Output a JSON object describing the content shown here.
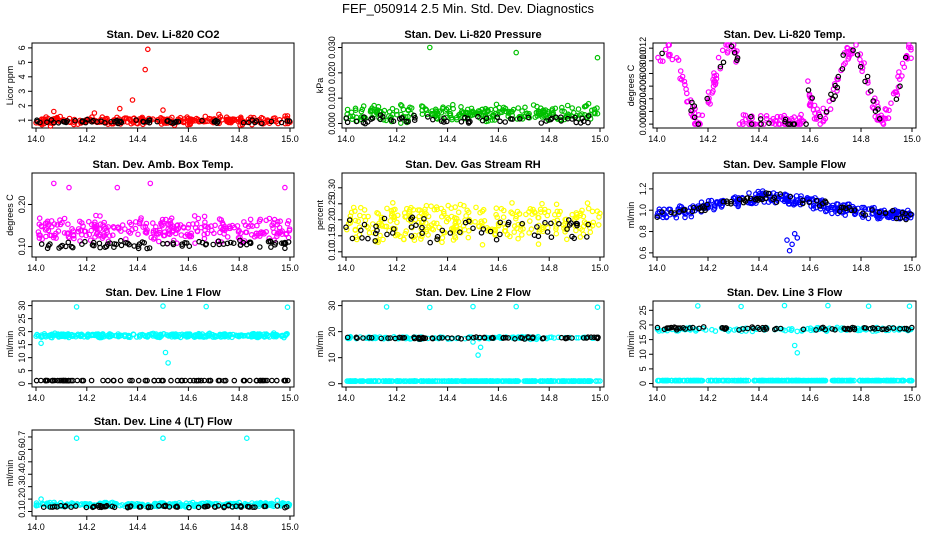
{
  "page_title": "FEF_050914  2.5 Min. Std. Dev. Diagnostics",
  "colors": {
    "red": "#ff0000",
    "green": "#00c000",
    "magenta": "#ff00ff",
    "yellow": "#ffff00",
    "blue": "#0000ff",
    "cyan": "#00ffff",
    "black": "#000000"
  },
  "chart_data": [
    {
      "type": "scatter",
      "title": "Stan. Dev. Li-820 CO2",
      "ylabel": "Licor ppm",
      "xlabel": "",
      "xlim": [
        14.0,
        15.0
      ],
      "ylim": [
        0.6,
        6.2
      ],
      "xticks": [
        "14.0",
        "14.2",
        "14.4",
        "14.6",
        "14.8",
        "15.0"
      ],
      "yticks": [
        "1",
        "2",
        "3",
        "4",
        "5",
        "6"
      ],
      "series": [
        {
          "name": "primary",
          "color": "#ff0000",
          "gen": {
            "count": 260,
            "base": 0.95,
            "spread": 0.35,
            "seed": 11
          },
          "outliers": [
            [
              14.44,
              5.9
            ],
            [
              14.43,
              4.5
            ],
            [
              14.38,
              2.4
            ],
            [
              14.07,
              1.6
            ],
            [
              14.23,
              1.5
            ],
            [
              14.5,
              1.7
            ],
            [
              14.72,
              1.4
            ],
            [
              14.99,
              1.3
            ],
            [
              14.33,
              1.8
            ]
          ]
        },
        {
          "name": "secondary",
          "color": "#000000",
          "gen": {
            "count": 60,
            "base": 0.9,
            "spread": 0.15,
            "seed": 12
          },
          "outliers": []
        }
      ]
    },
    {
      "type": "scatter",
      "title": "Stan. Dev. Li-820 Pressure",
      "ylabel": "kPa",
      "xlabel": "",
      "xlim": [
        14.0,
        15.0
      ],
      "ylim": [
        -0.001,
        0.031
      ],
      "xticks": [
        "14.0",
        "14.2",
        "14.4",
        "14.6",
        "14.8",
        "15.0"
      ],
      "yticks": [
        "0.000",
        "0.010",
        "0.020",
        "0.030"
      ],
      "series": [
        {
          "name": "primary",
          "color": "#00c000",
          "gen": {
            "count": 260,
            "base": 0.004,
            "spread": 0.004,
            "seed": 21
          },
          "outliers": [
            [
              14.33,
              0.03
            ],
            [
              14.67,
              0.028
            ],
            [
              14.99,
              0.026
            ]
          ]
        },
        {
          "name": "secondary",
          "color": "#000000",
          "gen": {
            "count": 60,
            "base": 0.0015,
            "spread": 0.002,
            "seed": 22
          },
          "outliers": []
        }
      ]
    },
    {
      "type": "scatter",
      "title": "Stan. Dev. Li-820 Temp.",
      "ylabel": "degrees C",
      "xlabel": "",
      "xlim": [
        14.0,
        15.0
      ],
      "ylim": [
        -0.0003,
        0.0125
      ],
      "xticks": [
        "14.0",
        "14.2",
        "14.4",
        "14.6",
        "14.8",
        "15.0"
      ],
      "yticks": [
        "0.000",
        "0.002",
        "0.004",
        "0.006",
        "0.008",
        "0.010",
        "0.012"
      ],
      "series": [
        {
          "name": "primary",
          "color": "#ff00ff",
          "gen": {
            "count": 240,
            "base": 0.006,
            "spread": 0.003,
            "seed": 31,
            "shape": "temp"
          },
          "outliers": []
        },
        {
          "name": "secondary",
          "color": "#000000",
          "gen": {
            "count": 50,
            "base": 0.006,
            "spread": 0.003,
            "seed": 32,
            "shape": "temp"
          },
          "outliers": []
        }
      ]
    },
    {
      "type": "scatter",
      "title": "Stan. Dev. Amb. Box Temp.",
      "ylabel": "degrees C",
      "xlabel": "",
      "xlim": [
        14.0,
        15.0
      ],
      "ylim": [
        0.08,
        0.27
      ],
      "xticks": [
        "14.0",
        "14.2",
        "14.4",
        "14.6",
        "14.8",
        "15.0"
      ],
      "yticks": [
        "0.10",
        "0.20"
      ],
      "series": [
        {
          "name": "primary",
          "color": "#ff00ff",
          "gen": {
            "count": 280,
            "base": 0.14,
            "spread": 0.035,
            "seed": 41
          },
          "outliers": [
            [
              14.07,
              0.25
            ],
            [
              14.32,
              0.24
            ],
            [
              14.45,
              0.25
            ],
            [
              14.13,
              0.24
            ],
            [
              14.98,
              0.24
            ]
          ]
        },
        {
          "name": "secondary",
          "color": "#000000",
          "gen": {
            "count": 80,
            "base": 0.105,
            "spread": 0.012,
            "seed": 42
          },
          "outliers": []
        }
      ]
    },
    {
      "type": "scatter",
      "title": "Stan. Dev. Gas Stream RH",
      "ylabel": "percent",
      "xlabel": "",
      "xlim": [
        14.0,
        15.0
      ],
      "ylim": [
        0.09,
        0.34
      ],
      "xticks": [
        "14.0",
        "14.2",
        "14.4",
        "14.6",
        "14.8",
        "15.0"
      ],
      "yticks": [
        "0.10",
        "0.15",
        "0.20",
        "0.25",
        "0.30"
      ],
      "series": [
        {
          "name": "primary",
          "color": "#ffff00",
          "gen": {
            "count": 300,
            "base": 0.19,
            "spread": 0.07,
            "seed": 51
          },
          "outliers": []
        },
        {
          "name": "secondary",
          "color": "#000000",
          "gen": {
            "count": 60,
            "base": 0.17,
            "spread": 0.05,
            "seed": 52
          },
          "outliers": []
        }
      ]
    },
    {
      "type": "scatter",
      "title": "Stan. Dev. Sample Flow",
      "ylabel": "ml/min",
      "xlabel": "",
      "xlim": [
        14.0,
        15.0
      ],
      "ylim": [
        0.58,
        1.33
      ],
      "xticks": [
        "14.0",
        "14.2",
        "14.4",
        "14.6",
        "14.8",
        "15.0"
      ],
      "yticks": [
        "0.6",
        "0.8",
        "1.0",
        "1.2"
      ],
      "series": [
        {
          "name": "primary",
          "color": "#0000ff",
          "gen": {
            "count": 300,
            "base": 0.95,
            "spread": 0.07,
            "seed": 61,
            "shape": "hump"
          },
          "outliers": [
            [
              14.52,
              0.62
            ],
            [
              14.53,
              0.68
            ],
            [
              14.51,
              0.72
            ],
            [
              14.54,
              0.78
            ],
            [
              14.55,
              0.74
            ]
          ]
        },
        {
          "name": "secondary",
          "color": "#000000",
          "gen": {
            "count": 70,
            "base": 0.95,
            "spread": 0.05,
            "seed": 62,
            "shape": "hump"
          },
          "outliers": []
        }
      ]
    },
    {
      "type": "scatter",
      "title": "Stan. Dev. Line 1 Flow",
      "ylabel": "ml/min",
      "xlabel": "",
      "xlim": [
        14.0,
        15.0
      ],
      "ylim": [
        -0.5,
        31.0
      ],
      "xticks": [
        "14.0",
        "14.2",
        "14.4",
        "14.6",
        "14.8",
        "15.0"
      ],
      "yticks": [
        "0",
        "5",
        "10",
        "15",
        "20",
        "25",
        "30"
      ],
      "series": [
        {
          "name": "primary",
          "color": "#00ffff",
          "gen": {
            "count": 300,
            "base": 18.5,
            "spread": 1.0,
            "seed": 71
          },
          "outliers": [
            [
              14.16,
              29.5
            ],
            [
              14.5,
              29.8
            ],
            [
              14.67,
              29.6
            ],
            [
              14.99,
              29.4
            ],
            [
              14.52,
              8.0
            ],
            [
              14.51,
              12.0
            ],
            [
              14.02,
              15.5
            ]
          ]
        },
        {
          "name": "secondary",
          "color": "#000000",
          "gen": {
            "count": 80,
            "base": 1.2,
            "spread": 0.05,
            "seed": 72
          },
          "outliers": []
        }
      ]
    },
    {
      "type": "scatter",
      "title": "Stan. Dev. Line 2 Flow",
      "ylabel": "ml/min",
      "xlabel": "",
      "xlim": [
        14.0,
        15.0
      ],
      "ylim": [
        -0.5,
        31.0
      ],
      "xticks": [
        "14.0",
        "14.2",
        "14.4",
        "14.6",
        "14.8",
        "15.0"
      ],
      "yticks": [
        "0",
        "10",
        "20",
        "30"
      ],
      "series": [
        {
          "name": "primary",
          "color": "#00ffff",
          "gen": {
            "count": 300,
            "base": 1.0,
            "spread": 0.05,
            "seed": 81
          },
          "outliers": [
            [
              14.16,
              29.5
            ],
            [
              14.33,
              29.3
            ],
            [
              14.5,
              29.6
            ],
            [
              14.67,
              29.6
            ],
            [
              14.99,
              29.4
            ],
            [
              14.52,
              11.0
            ],
            [
              14.53,
              14.0
            ],
            [
              14.5,
              16.0
            ]
          ]
        },
        {
          "name": "tertiary",
          "color": "#00ffff",
          "gen": {
            "count": 120,
            "base": 17.6,
            "spread": 0.6,
            "seed": 83
          },
          "outliers": []
        },
        {
          "name": "secondary",
          "color": "#000000",
          "gen": {
            "count": 70,
            "base": 17.6,
            "spread": 0.5,
            "seed": 82
          },
          "outliers": []
        }
      ]
    },
    {
      "type": "scatter",
      "title": "Stan. Dev. Line 3 Flow",
      "ylabel": "ml/min",
      "xlabel": "",
      "xlim": [
        14.0,
        15.0
      ],
      "ylim": [
        -0.5,
        27.5
      ],
      "xticks": [
        "14.0",
        "14.2",
        "14.4",
        "14.6",
        "14.8",
        "15.0"
      ],
      "yticks": [
        "0",
        "5",
        "10",
        "15",
        "20",
        "25"
      ],
      "series": [
        {
          "name": "primary",
          "color": "#00ffff",
          "gen": {
            "count": 300,
            "base": 1.0,
            "spread": 0.05,
            "seed": 91
          },
          "outliers": [
            [
              14.16,
              26.5
            ],
            [
              14.33,
              26.3
            ],
            [
              14.5,
              26.6
            ],
            [
              14.67,
              26.6
            ],
            [
              14.83,
              26.4
            ],
            [
              14.99,
              26.4
            ],
            [
              14.55,
              10.5
            ],
            [
              14.54,
              13.0
            ]
          ]
        },
        {
          "name": "tertiary",
          "color": "#00ffff",
          "gen": {
            "count": 120,
            "base": 18.5,
            "spread": 0.8,
            "seed": 93
          },
          "outliers": []
        },
        {
          "name": "secondary",
          "color": "#000000",
          "gen": {
            "count": 70,
            "base": 18.8,
            "spread": 0.6,
            "seed": 92
          },
          "outliers": []
        }
      ]
    },
    {
      "type": "scatter",
      "title": "Stan. Dev. Line 4 (LT) Flow",
      "ylabel": "ml/min",
      "xlabel": "",
      "xlim": [
        14.0,
        15.0
      ],
      "ylim": [
        0.08,
        0.74
      ],
      "xticks": [
        "14.0",
        "14.2",
        "14.4",
        "14.6",
        "14.8",
        "15.0"
      ],
      "yticks": [
        "0.1",
        "0.2",
        "0.3",
        "0.4",
        "0.5",
        "0.6",
        "0.7"
      ],
      "series": [
        {
          "name": "primary",
          "color": "#00ffff",
          "gen": {
            "count": 280,
            "base": 0.155,
            "spread": 0.02,
            "seed": 101
          },
          "outliers": [
            [
              14.16,
              0.69
            ],
            [
              14.5,
              0.69
            ],
            [
              14.83,
              0.69
            ],
            [
              14.02,
              0.2
            ],
            [
              14.95,
              0.19
            ]
          ]
        },
        {
          "name": "secondary",
          "color": "#000000",
          "gen": {
            "count": 70,
            "base": 0.14,
            "spread": 0.012,
            "seed": 102
          },
          "outliers": []
        }
      ]
    }
  ]
}
